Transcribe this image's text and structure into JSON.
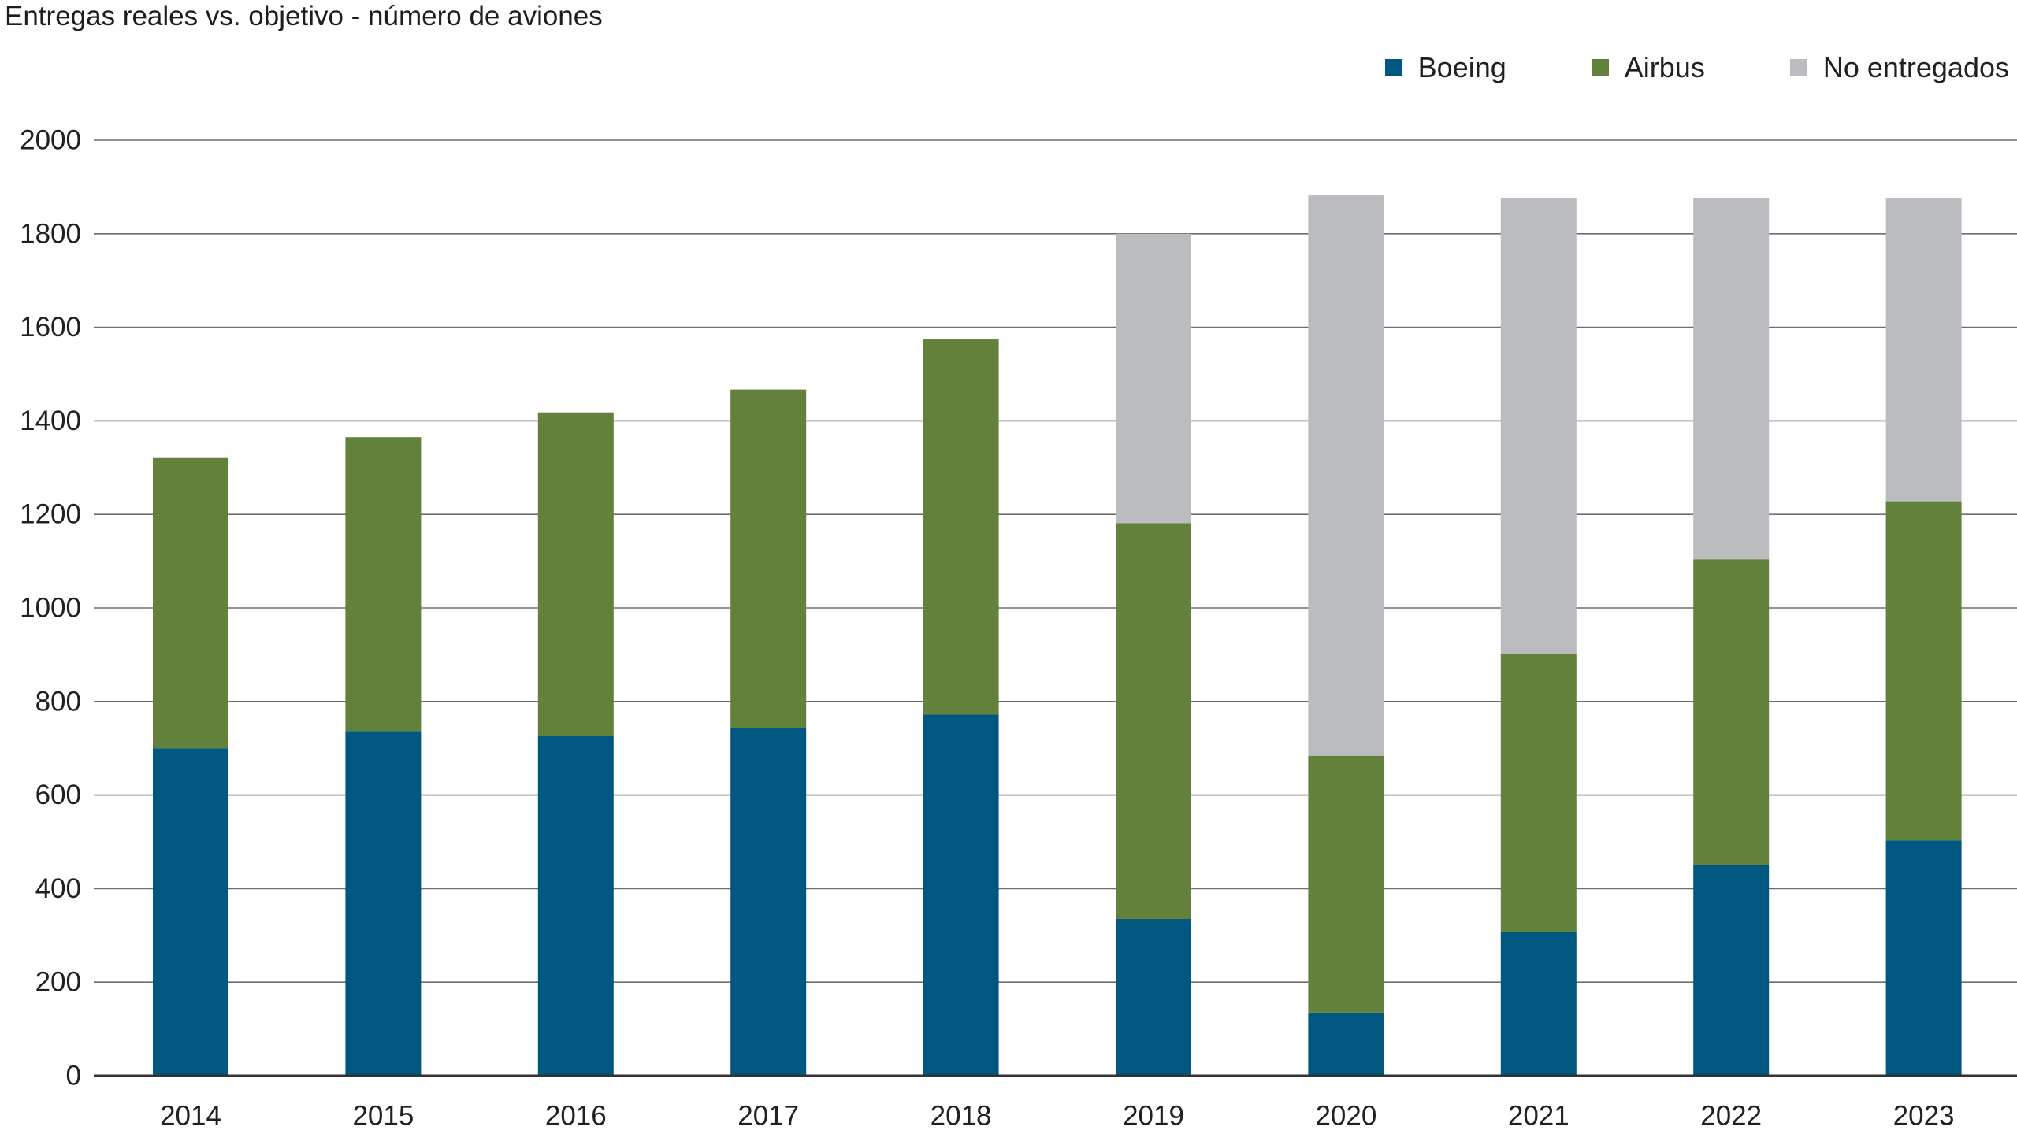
{
  "chart_data": {
    "type": "bar",
    "stacked": true,
    "title": "Entregas reales vs. objetivo - número de aviones",
    "categories": [
      "2014",
      "2015",
      "2016",
      "2017",
      "2018",
      "2019",
      "2020",
      "2021",
      "2022",
      "2023"
    ],
    "series": [
      {
        "name": "Boeing",
        "color": "#00577f",
        "values": [
          700,
          737,
          726,
          743,
          772,
          335,
          135,
          308,
          451,
          503
        ]
      },
      {
        "name": "Airbus",
        "color": "#62813b",
        "values": [
          622,
          628,
          692,
          724,
          802,
          846,
          549,
          593,
          653,
          725
        ]
      },
      {
        "name": "No entregados",
        "color": "#bbbcbf",
        "values": [
          0,
          0,
          0,
          0,
          0,
          619,
          1198,
          975,
          772,
          648
        ]
      }
    ],
    "ylim": [
      0,
      2000
    ],
    "yticks": [
      0,
      200,
      400,
      600,
      800,
      1000,
      1200,
      1400,
      1600,
      1800,
      2000
    ],
    "grid": true,
    "legend_position": "top-right"
  }
}
